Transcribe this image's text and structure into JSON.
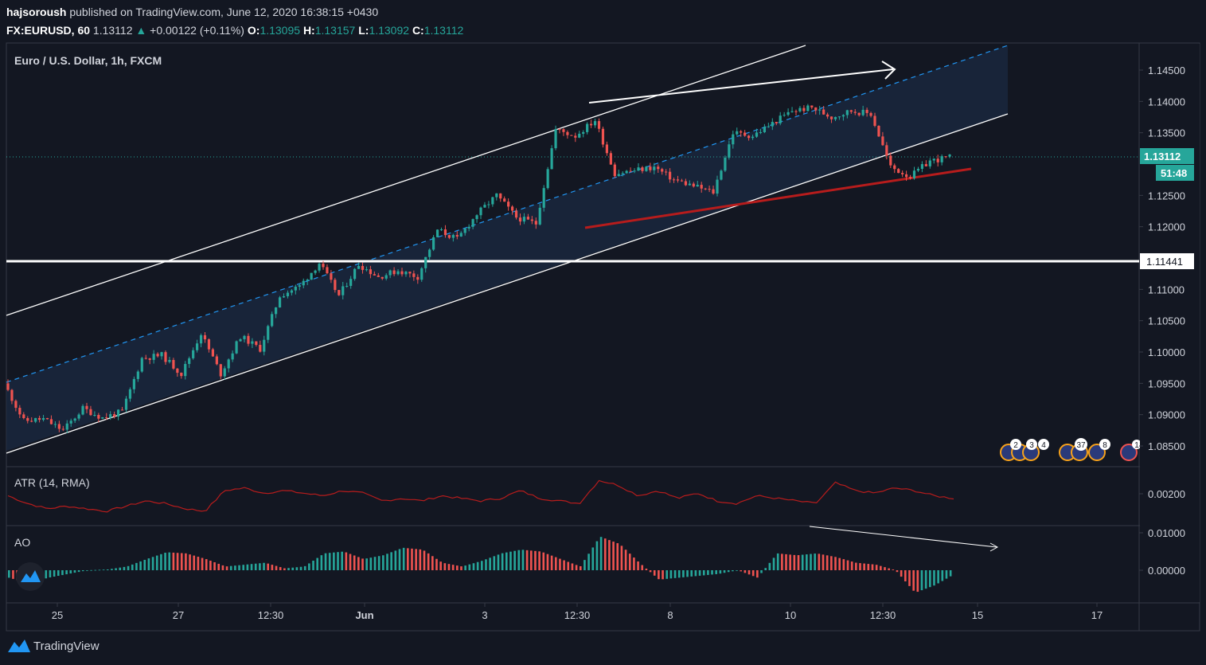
{
  "header": {
    "author": "hajsoroush",
    "published_text": "published on TradingView.com, June 12, 2020 16:38:15 +0430",
    "symbol": "FX:EURUSD, 60",
    "last": "1.13112",
    "change_arrow": "▲",
    "change": "+0.00122 (+0.11%)",
    "o_label": "O:",
    "o": "1.13095",
    "h_label": "H:",
    "h": "1.13157",
    "l_label": "L:",
    "l": "1.13092",
    "c_label": "C:",
    "c": "1.13112"
  },
  "pane_title": "Euro / U.S. Dollar, 1h, FXCM",
  "atr_title": "ATR (14, RMA)",
  "ao_title": "AO",
  "brand": "TradingView",
  "colors": {
    "background": "#131722",
    "up": "#26a69a",
    "down": "#ef5350",
    "channel": "#ffffff",
    "midline": "#2196f3",
    "support": "#b71c1c",
    "atr": "#b71c1c",
    "ao_up": "#26a69a",
    "ao_down": "#ef5350"
  },
  "price_axis": {
    "ticks": [
      "1.14500",
      "1.14000",
      "1.13500",
      "1.12500",
      "1.12000",
      "1.11000",
      "1.10500",
      "1.10000",
      "1.09500",
      "1.09000",
      "1.08500"
    ],
    "current_price": "1.13112",
    "countdown": "51:48",
    "level_label": "1.11441"
  },
  "atr_axis": {
    "ticks": [
      "0.00200"
    ]
  },
  "ao_axis": {
    "ticks": [
      "0.01000",
      "0.00000"
    ]
  },
  "time_axis": {
    "labels": [
      "25",
      "27",
      "12:30",
      "Jun",
      "3",
      "12:30",
      "8",
      "10",
      "12:30",
      "15",
      "17"
    ]
  },
  "events": {
    "labels": [
      "2",
      "3",
      "4",
      "37",
      "8",
      "1"
    ]
  },
  "chart_data": {
    "type": "candlestick",
    "title": "Euro / U.S. Dollar, 1h, FXCM",
    "symbol": "FX:EURUSD",
    "timeframe": "60",
    "ylim": [
      1.0815,
      1.148
    ],
    "price_waypoints": [
      [
        "May 25",
        1.095
      ],
      [
        "",
        1.089
      ],
      [
        "",
        1.0893
      ],
      [
        "",
        1.0875
      ],
      [
        "",
        1.091
      ],
      [
        "",
        1.0895
      ],
      [
        "",
        1.0905
      ],
      [
        "",
        1.099
      ],
      [
        "May 27",
        1.0995
      ],
      [
        "",
        1.0965
      ],
      [
        "",
        1.103
      ],
      [
        "",
        1.0965
      ],
      [
        "",
        1.1025
      ],
      [
        "",
        1.1005
      ],
      [
        "",
        1.109
      ],
      [
        "",
        1.1105
      ],
      [
        "",
        1.1142
      ],
      [
        "",
        1.109
      ],
      [
        "",
        1.114
      ],
      [
        "Jun",
        1.112
      ],
      [
        "",
        1.113
      ],
      [
        "",
        1.112
      ],
      [
        "",
        1.1195
      ],
      [
        "",
        1.118
      ],
      [
        "Jun 3",
        1.122
      ],
      [
        "",
        1.125
      ],
      [
        "",
        1.1215
      ],
      [
        "",
        1.1205
      ],
      [
        "12:30",
        1.1355
      ],
      [
        "",
        1.1345
      ],
      [
        "",
        1.137
      ],
      [
        "",
        1.1285
      ],
      [
        "Jun 8",
        1.129
      ],
      [
        "",
        1.1295
      ],
      [
        "",
        1.1275
      ],
      [
        "",
        1.1265
      ],
      [
        "",
        1.1255
      ],
      [
        "Jun 10",
        1.135
      ],
      [
        "",
        1.1345
      ],
      [
        "",
        1.1365
      ],
      [
        "",
        1.1385
      ],
      [
        "",
        1.139
      ],
      [
        "",
        1.1375
      ],
      [
        "12:30",
        1.1385
      ],
      [
        "",
        1.138
      ],
      [
        "",
        1.1295
      ],
      [
        "",
        1.128
      ],
      [
        "",
        1.1305
      ],
      [
        "",
        1.1311
      ]
    ],
    "last_close": 1.13112,
    "horizontal_level": 1.11441,
    "annotations": [
      "ascending channel",
      "channel midline (dashed)",
      "support trendline",
      "divergence arrows"
    ],
    "indicators": [
      {
        "name": "ATR (14, RMA)",
        "range": [
          0.001,
          0.003
        ]
      },
      {
        "name": "AO",
        "range": [
          -0.005,
          0.011
        ]
      }
    ]
  }
}
